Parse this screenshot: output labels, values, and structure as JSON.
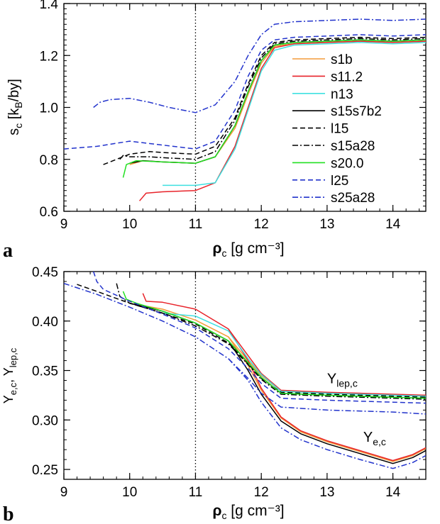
{
  "figure": {
    "colors": {
      "s1b": "#f39c3a",
      "s11.2": "#e8232a",
      "n13": "#3fe0e0",
      "s15s7b2": "#000000",
      "l15": "#000000",
      "s15a28": "#000000",
      "s20.0": "#22e022",
      "l25": "#2233cc",
      "s25a28": "#2233cc"
    }
  },
  "chart_data": [
    {
      "type": "line",
      "panel_label": "a",
      "xlabel": "ρc [g cm⁻³]",
      "ylabel": "sc [kB/by]",
      "xlim": [
        9,
        14.5
      ],
      "ylim": [
        0.6,
        1.4
      ],
      "xticks": [
        "9",
        "10",
        "11",
        "12",
        "13",
        "14"
      ],
      "yticks": [
        "0.6",
        "0.8",
        "1.0",
        "1.2",
        "1.4"
      ],
      "vline_x": 11,
      "legend_position": "center-right",
      "series": [
        {
          "name": "s1b",
          "style": "solid",
          "color": "#f39c3a",
          "x": [
            10.0,
            10.2,
            10.5,
            11.0,
            11.3,
            11.6,
            11.8,
            12.0,
            12.2,
            12.5,
            13.0,
            13.5,
            14.0,
            14.5
          ],
          "y": [
            0.78,
            0.795,
            0.79,
            0.785,
            0.81,
            0.92,
            1.05,
            1.17,
            1.235,
            1.245,
            1.25,
            1.255,
            1.25,
            1.255
          ]
        },
        {
          "name": "s11.2",
          "style": "solid",
          "color": "#e8232a",
          "x": [
            10.15,
            10.25,
            10.5,
            11.0,
            11.3,
            11.6,
            11.8,
            12.0,
            12.2,
            12.5,
            13.0,
            13.5,
            14.0,
            14.5
          ],
          "y": [
            0.64,
            0.67,
            0.675,
            0.68,
            0.71,
            0.85,
            1.0,
            1.15,
            1.23,
            1.245,
            1.25,
            1.255,
            1.25,
            1.255
          ]
        },
        {
          "name": "n13",
          "style": "solid",
          "color": "#3fe0e0",
          "x": [
            10.5,
            11.0,
            11.3,
            11.6,
            11.8,
            12.0,
            12.2,
            12.5,
            13.0,
            13.5,
            14.0,
            14.5
          ],
          "y": [
            0.7,
            0.7,
            0.71,
            0.84,
            0.99,
            1.14,
            1.22,
            1.24,
            1.245,
            1.25,
            1.245,
            1.25
          ]
        },
        {
          "name": "s15s7b2",
          "style": "solid",
          "color": "#000000",
          "x": [
            10.0,
            10.2,
            10.5,
            11.0,
            11.3,
            11.6,
            11.8,
            12.0,
            12.2,
            12.5,
            13.0,
            13.5,
            14.0,
            14.5
          ],
          "y": [
            0.785,
            0.795,
            0.79,
            0.785,
            0.81,
            0.93,
            1.06,
            1.18,
            1.24,
            1.25,
            1.255,
            1.26,
            1.255,
            1.26
          ]
        },
        {
          "name": "l15",
          "style": "dash",
          "color": "#000000",
          "x": [
            9.6,
            9.8,
            10.0,
            10.3,
            10.6,
            11.0,
            11.3,
            11.6,
            11.8,
            12.0,
            12.2,
            12.5,
            13.0,
            13.5,
            14.0,
            14.5
          ],
          "y": [
            0.78,
            0.8,
            0.82,
            0.83,
            0.825,
            0.82,
            0.85,
            0.96,
            1.09,
            1.2,
            1.25,
            1.26,
            1.265,
            1.27,
            1.265,
            1.27
          ]
        },
        {
          "name": "s15a28",
          "style": "dashdot",
          "color": "#000000",
          "x": [
            9.85,
            9.9,
            10.0,
            10.3,
            10.6,
            11.0,
            11.3,
            11.6,
            11.8,
            12.0,
            12.2,
            12.5,
            13.0,
            13.5,
            14.0,
            14.5
          ],
          "y": [
            0.8,
            0.815,
            0.81,
            0.81,
            0.805,
            0.8,
            0.83,
            0.95,
            1.08,
            1.19,
            1.245,
            1.255,
            1.26,
            1.265,
            1.26,
            1.265
          ]
        },
        {
          "name": "s20.0",
          "style": "solid",
          "color": "#22e022",
          "x": [
            9.9,
            9.95,
            10.1,
            10.5,
            11.0,
            11.3,
            11.6,
            11.8,
            12.0,
            12.2,
            12.5,
            13.0,
            13.5,
            14.0,
            14.5
          ],
          "y": [
            0.73,
            0.78,
            0.795,
            0.79,
            0.785,
            0.81,
            0.93,
            1.06,
            1.18,
            1.24,
            1.25,
            1.255,
            1.26,
            1.255,
            1.26
          ]
        },
        {
          "name": "l25",
          "style": "dash",
          "color": "#2233cc",
          "x": [
            9.0,
            9.5,
            10.0,
            10.5,
            11.0,
            11.3,
            11.6,
            11.8,
            12.0,
            12.2,
            12.5,
            13.0,
            13.5,
            14.0,
            14.5
          ],
          "y": [
            0.84,
            0.85,
            0.87,
            0.855,
            0.84,
            0.87,
            0.99,
            1.12,
            1.22,
            1.26,
            1.27,
            1.275,
            1.28,
            1.275,
            1.28
          ]
        },
        {
          "name": "s25a28",
          "style": "dashdot",
          "color": "#2233cc",
          "x": [
            9.45,
            9.55,
            9.7,
            10.0,
            10.3,
            10.6,
            11.0,
            11.3,
            11.6,
            11.8,
            12.0,
            12.2,
            12.5,
            13.0,
            13.5,
            14.0,
            14.5
          ],
          "y": [
            1.0,
            1.02,
            1.03,
            1.035,
            1.02,
            1.0,
            0.98,
            1.01,
            1.1,
            1.2,
            1.28,
            1.32,
            1.33,
            1.335,
            1.34,
            1.335,
            1.34
          ]
        }
      ]
    },
    {
      "type": "line",
      "panel_label": "b",
      "xlabel": "ρc [g cm⁻³]",
      "ylabel": "Ye,c, Ylep,c",
      "xlim": [
        9,
        14.5
      ],
      "ylim": [
        0.24,
        0.45
      ],
      "xticks": [
        "9",
        "10",
        "11",
        "12",
        "13",
        "14"
      ],
      "yticks": [
        "0.25",
        "0.30",
        "0.35",
        "0.40",
        "0.45"
      ],
      "vline_x": 11,
      "annotations": [
        {
          "text": "Ylep,c",
          "x": 13.0,
          "y": 0.337
        },
        {
          "text": "Ye,c",
          "x": 13.55,
          "y": 0.278
        }
      ],
      "series": [
        {
          "name": "s1b Ylep",
          "style": "solid",
          "color": "#f39c3a",
          "x": [
            10.0,
            10.5,
            11.0,
            11.5,
            11.8,
            12.0,
            12.3,
            13.0,
            14.0,
            14.5
          ],
          "y": [
            0.418,
            0.412,
            0.401,
            0.384,
            0.36,
            0.345,
            0.329,
            0.327,
            0.325,
            0.324
          ]
        },
        {
          "name": "s1b Ye",
          "style": "solid",
          "color": "#f39c3a",
          "x": [
            11.5,
            11.8,
            12.0,
            12.3,
            12.6,
            13.0,
            13.5,
            14.0,
            14.3,
            14.5
          ],
          "y": [
            0.384,
            0.355,
            0.33,
            0.302,
            0.288,
            0.278,
            0.268,
            0.258,
            0.264,
            0.271
          ]
        },
        {
          "name": "s11.2 Ylep",
          "style": "solid",
          "color": "#e8232a",
          "x": [
            10.2,
            10.25,
            10.5,
            11.0,
            11.5,
            11.8,
            12.0,
            12.3,
            13.0,
            14.0,
            14.5
          ],
          "y": [
            0.428,
            0.42,
            0.419,
            0.412,
            0.392,
            0.365,
            0.347,
            0.33,
            0.328,
            0.326,
            0.325
          ]
        },
        {
          "name": "s11.2 Ye",
          "style": "solid",
          "color": "#e8232a",
          "x": [
            11.5,
            11.8,
            12.0,
            12.3,
            12.6,
            13.0,
            13.5,
            14.0,
            14.3,
            14.5
          ],
          "y": [
            0.392,
            0.36,
            0.332,
            0.303,
            0.289,
            0.279,
            0.269,
            0.259,
            0.265,
            0.272
          ]
        },
        {
          "name": "n13 Ylep",
          "style": "solid",
          "color": "#3fe0e0",
          "x": [
            10.5,
            11.0,
            11.5,
            11.8,
            12.0,
            12.3,
            13.0,
            14.0,
            14.5
          ],
          "y": [
            0.408,
            0.405,
            0.39,
            0.362,
            0.346,
            0.329,
            0.327,
            0.325,
            0.324
          ]
        },
        {
          "name": "s15s7b2 Ylep",
          "style": "solid",
          "color": "#000000",
          "x": [
            10.0,
            10.5,
            11.0,
            11.5,
            11.8,
            12.0,
            12.3,
            13.0,
            14.0,
            14.5
          ],
          "y": [
            0.418,
            0.41,
            0.398,
            0.38,
            0.358,
            0.343,
            0.327,
            0.325,
            0.323,
            0.322
          ]
        },
        {
          "name": "s15s7b2 Ye",
          "style": "solid",
          "color": "#000000",
          "x": [
            11.5,
            11.8,
            12.0,
            12.3,
            12.6,
            13.0,
            13.5,
            14.0,
            14.3,
            14.5
          ],
          "y": [
            0.38,
            0.35,
            0.326,
            0.299,
            0.286,
            0.276,
            0.266,
            0.256,
            0.262,
            0.269
          ]
        },
        {
          "name": "l15",
          "style": "dash",
          "color": "#000000",
          "x": [
            9.2,
            9.5,
            10.0,
            10.5,
            11.0,
            11.5,
            11.8,
            12.0,
            12.3,
            13.0,
            14.0,
            14.5
          ],
          "y": [
            0.437,
            0.43,
            0.418,
            0.408,
            0.397,
            0.378,
            0.357,
            0.342,
            0.328,
            0.326,
            0.324,
            0.323
          ]
        },
        {
          "name": "s15a28",
          "style": "dashdot",
          "color": "#000000",
          "x": [
            9.8,
            9.85,
            10.0,
            10.5,
            11.0,
            11.5,
            11.8,
            12.0,
            12.3,
            13.0,
            14.0,
            14.5
          ],
          "y": [
            0.438,
            0.425,
            0.418,
            0.408,
            0.395,
            0.377,
            0.356,
            0.341,
            0.326,
            0.324,
            0.322,
            0.321
          ]
        },
        {
          "name": "s20.0",
          "style": "solid",
          "color": "#22e022",
          "x": [
            9.9,
            9.95,
            10.1,
            10.5,
            11.0,
            11.5,
            11.8,
            12.0,
            12.3,
            13.0,
            14.0,
            14.5
          ],
          "y": [
            0.43,
            0.422,
            0.418,
            0.41,
            0.398,
            0.38,
            0.358,
            0.343,
            0.327,
            0.325,
            0.323,
            0.322
          ]
        },
        {
          "name": "l25",
          "style": "dash",
          "color": "#2233cc",
          "x": [
            9.45,
            9.5,
            9.6,
            10.0,
            10.5,
            11.0,
            11.5,
            11.8,
            12.0,
            12.3,
            13.0,
            14.0,
            14.5
          ],
          "y": [
            0.45,
            0.44,
            0.432,
            0.42,
            0.407,
            0.393,
            0.372,
            0.352,
            0.337,
            0.322,
            0.32,
            0.318,
            0.317
          ]
        },
        {
          "name": "s25a28",
          "style": "dashdot",
          "color": "#2233cc",
          "x": [
            9.0,
            9.5,
            10.0,
            10.5,
            11.0,
            11.5,
            11.8,
            12.0,
            12.3,
            13.0,
            14.0,
            14.5
          ],
          "y": [
            0.438,
            0.427,
            0.414,
            0.4,
            0.384,
            0.362,
            0.342,
            0.327,
            0.313,
            0.31,
            0.308,
            0.306
          ]
        },
        {
          "name": "s25a28 Ye",
          "style": "dashdot",
          "color": "#2233cc",
          "x": [
            11.5,
            11.8,
            12.0,
            12.3,
            12.6,
            13.0,
            13.5,
            14.0,
            14.3,
            14.5
          ],
          "y": [
            0.362,
            0.34,
            0.318,
            0.292,
            0.28,
            0.27,
            0.26,
            0.251,
            0.257,
            0.264
          ]
        }
      ]
    }
  ]
}
